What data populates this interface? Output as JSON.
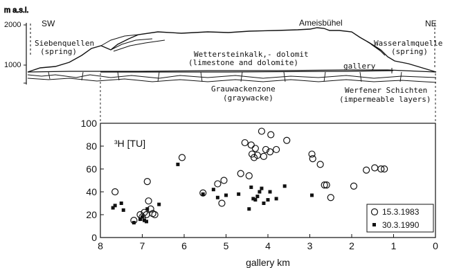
{
  "cross_section": {
    "y_axis_unit": "m a.s.l.",
    "y_ticks": [
      "2000",
      "1000"
    ],
    "direction_left": "SW",
    "direction_right": "NE",
    "labels": {
      "siebenquellen": "Siebenquellen",
      "siebenquellen_note": "(spring)",
      "wetterstein": "Wettersteinkalk,- dolomit",
      "wetterstein_note": "(limestone and dolomite)",
      "ameisbuehel": "Ameisbühel",
      "wasseralm": "Wasseralmquelle",
      "wasseralm_note": "(spring)",
      "gallery": "gallery",
      "grauwacken": "Grauwackenzone",
      "grauwacken_note": "(graywacke)",
      "werfener": "Werfener Schichten",
      "werfener_note": "(impermeable layers)"
    }
  },
  "chart_data": {
    "type": "scatter",
    "title": "",
    "ylabel": "³H [TU]",
    "xlabel": "gallery km",
    "xlim": [
      8,
      0
    ],
    "ylim": [
      0,
      100
    ],
    "x_ticks": [
      8,
      7,
      6,
      5,
      4,
      3,
      2,
      1,
      0
    ],
    "y_ticks": [
      0,
      20,
      40,
      60,
      80,
      100
    ],
    "grid": false,
    "legend_position": "bottom-right",
    "series": [
      {
        "name": "15.3.1983",
        "marker": "open-circle",
        "points": [
          [
            7.65,
            40
          ],
          [
            7.2,
            15
          ],
          [
            7.05,
            20
          ],
          [
            7.0,
            18
          ],
          [
            6.95,
            22
          ],
          [
            6.9,
            20
          ],
          [
            6.88,
            49
          ],
          [
            6.85,
            32
          ],
          [
            6.8,
            25
          ],
          [
            6.75,
            21
          ],
          [
            6.7,
            20
          ],
          [
            6.05,
            70
          ],
          [
            5.55,
            39
          ],
          [
            5.2,
            47
          ],
          [
            5.1,
            30
          ],
          [
            5.05,
            50
          ],
          [
            4.65,
            56
          ],
          [
            4.55,
            83
          ],
          [
            4.45,
            54
          ],
          [
            4.4,
            81
          ],
          [
            4.38,
            73
          ],
          [
            4.33,
            70
          ],
          [
            4.3,
            78
          ],
          [
            4.25,
            72
          ],
          [
            4.15,
            93
          ],
          [
            4.1,
            71
          ],
          [
            4.05,
            77
          ],
          [
            3.95,
            75
          ],
          [
            3.93,
            90
          ],
          [
            3.8,
            77
          ],
          [
            3.55,
            85
          ],
          [
            2.95,
            73
          ],
          [
            2.93,
            69
          ],
          [
            2.75,
            64
          ],
          [
            2.65,
            46
          ],
          [
            2.6,
            46
          ],
          [
            2.5,
            35
          ],
          [
            1.95,
            45
          ],
          [
            1.65,
            59
          ],
          [
            1.45,
            61
          ],
          [
            1.3,
            60
          ],
          [
            1.22,
            60
          ]
        ]
      },
      {
        "name": "30.3.1990",
        "marker": "filled-square",
        "points": [
          [
            7.7,
            26
          ],
          [
            7.65,
            28
          ],
          [
            7.5,
            30
          ],
          [
            7.45,
            24
          ],
          [
            7.2,
            13
          ],
          [
            7.05,
            16
          ],
          [
            7.0,
            18
          ],
          [
            6.95,
            15
          ],
          [
            6.9,
            14
          ],
          [
            6.88,
            25
          ],
          [
            6.6,
            29
          ],
          [
            6.15,
            64
          ],
          [
            5.55,
            38
          ],
          [
            5.3,
            42
          ],
          [
            5.2,
            35
          ],
          [
            5.0,
            37
          ],
          [
            4.7,
            38
          ],
          [
            4.45,
            25
          ],
          [
            4.4,
            44
          ],
          [
            4.35,
            34
          ],
          [
            4.3,
            33
          ],
          [
            4.25,
            36
          ],
          [
            4.2,
            40
          ],
          [
            4.15,
            43
          ],
          [
            4.1,
            30
          ],
          [
            4.0,
            33
          ],
          [
            3.95,
            40
          ],
          [
            3.8,
            34
          ],
          [
            3.6,
            45
          ],
          [
            2.95,
            37
          ]
        ]
      }
    ]
  }
}
